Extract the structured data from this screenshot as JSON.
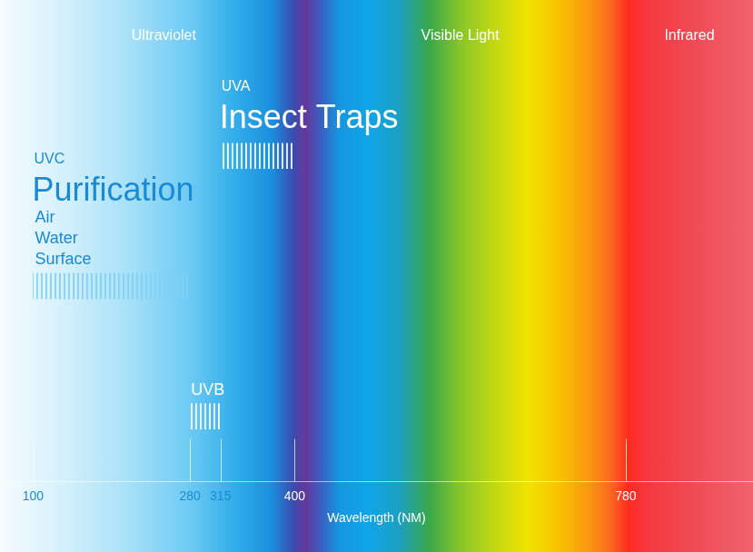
{
  "chart_data": {
    "type": "bar",
    "orientation": "horizontal",
    "x_label": "Wavelength (NM)",
    "xlim": [
      62,
      926
    ],
    "xticks": [
      100,
      280,
      315,
      400,
      780
    ],
    "grid": false,
    "regions": [
      {
        "label": "Ultraviolet",
        "range": [
          100,
          400
        ]
      },
      {
        "label": "Visible Light",
        "range": [
          400,
          780
        ]
      },
      {
        "label": "Infrared",
        "range": [
          780,
          926
        ]
      }
    ],
    "bands": [
      {
        "name": "UVA",
        "label": "Insect Traps",
        "range": [
          315,
          400
        ],
        "color": "#ffffff"
      },
      {
        "name": "UVC",
        "label": "Purification",
        "items": [
          "Air",
          "Water",
          "Surface"
        ],
        "range": [
          100,
          280
        ],
        "color": "#7fd0f6"
      },
      {
        "name": "UVB",
        "range": [
          280,
          315
        ],
        "color": "#ffffff"
      }
    ]
  }
}
